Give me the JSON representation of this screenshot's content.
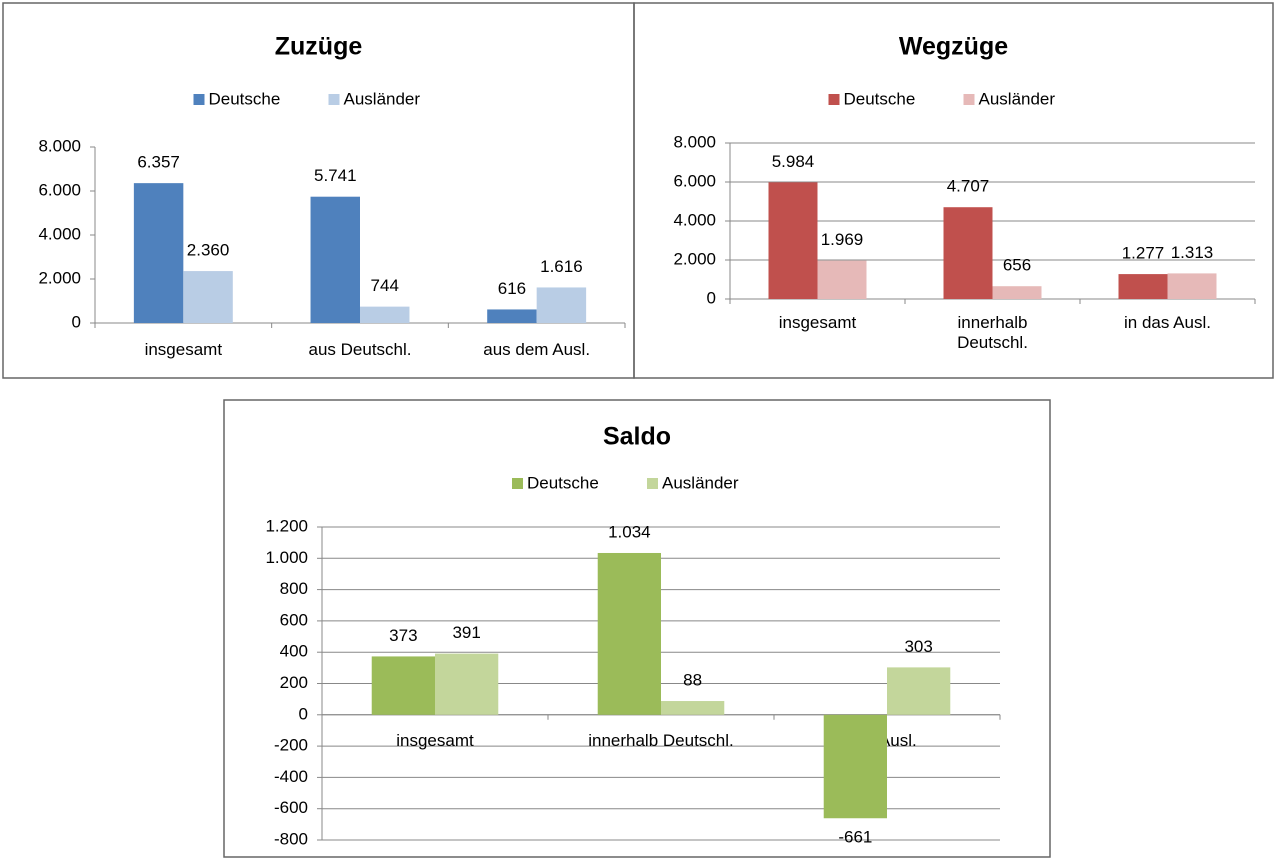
{
  "chart_data": [
    {
      "type": "bar",
      "title": "Zuzüge",
      "categories": [
        "insgesamt",
        "aus Deutschl.",
        "aus dem Ausl."
      ],
      "series": [
        {
          "name": "Deutsche",
          "color": "#4f81bd",
          "values": [
            6357,
            5741,
            616
          ],
          "value_labels": [
            "6.357",
            "5.741",
            "616"
          ]
        },
        {
          "name": "Ausländer",
          "color": "#b9cde5",
          "values": [
            2360,
            744,
            1616
          ],
          "value_labels": [
            "2.360",
            "744",
            "1.616"
          ]
        }
      ],
      "ylim": [
        0,
        8000
      ],
      "yticks": [
        0,
        {
          "value": 2000,
          "label": "2.000"
        },
        {
          "value": 4000,
          "label": "4.000"
        },
        {
          "value": 6000,
          "label": "6.000"
        },
        {
          "value": 8000,
          "label": "8.000"
        }
      ],
      "grid": false,
      "legend": "top"
    },
    {
      "type": "bar",
      "title": "Wegzüge",
      "categories": [
        "insgesamt",
        "innerhalb Deutschl.",
        "in das Ausl."
      ],
      "series": [
        {
          "name": "Deutsche",
          "color": "#c0504d",
          "values": [
            5984,
            4707,
            1277
          ],
          "value_labels": [
            "5.984",
            "4.707",
            "1.277"
          ]
        },
        {
          "name": "Ausländer",
          "color": "#e6b9b8",
          "values": [
            1969,
            656,
            1313
          ],
          "value_labels": [
            "1.969",
            "656",
            "1.313"
          ]
        }
      ],
      "ylim": [
        0,
        8000
      ],
      "yticks": [
        0,
        {
          "value": 2000,
          "label": "2.000"
        },
        {
          "value": 4000,
          "label": "4.000"
        },
        {
          "value": 6000,
          "label": "6.000"
        },
        {
          "value": 8000,
          "label": "8.000"
        }
      ],
      "grid": true,
      "legend": "top"
    },
    {
      "type": "bar",
      "title": "Saldo",
      "categories": [
        "insgesamt",
        "innerhalb Deutschl.",
        "im Ausl."
      ],
      "series": [
        {
          "name": "Deutsche",
          "color": "#9bbb59",
          "values": [
            373,
            1034,
            -661
          ],
          "value_labels": [
            "373",
            "1.034",
            "-661"
          ]
        },
        {
          "name": "Ausländer",
          "color": "#c3d69b",
          "values": [
            391,
            88,
            303
          ]
        }
      ],
      "ylim": [
        -800,
        1200
      ],
      "yticks": [
        -800,
        -600,
        -400,
        -200,
        0,
        200,
        400,
        600,
        800,
        {
          "value": 1000,
          "label": "1.000"
        },
        {
          "value": 1200,
          "label": "1.200"
        }
      ],
      "grid": true,
      "legend": "top"
    }
  ]
}
